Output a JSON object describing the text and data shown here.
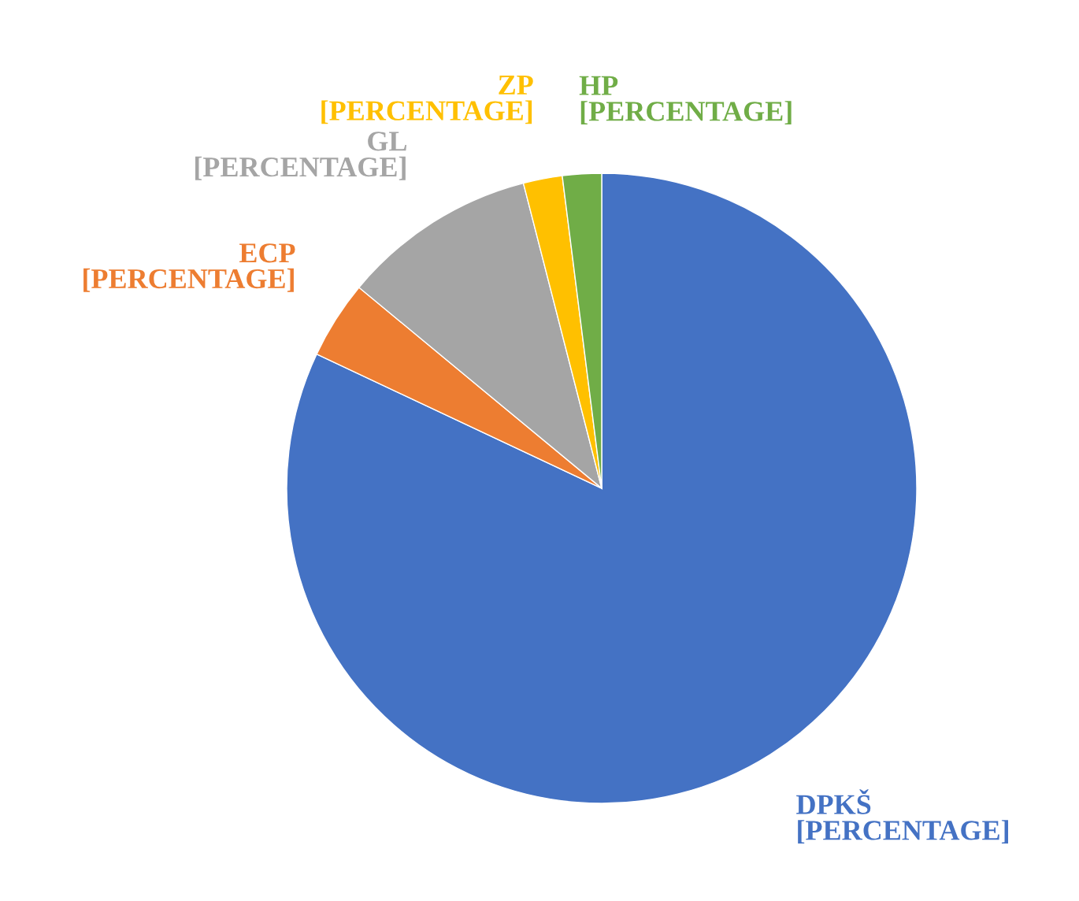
{
  "chart_data": {
    "type": "pie",
    "categories": [
      "DPKŠ",
      "ECP",
      "GL",
      "ZP",
      "HP"
    ],
    "values": [
      82,
      4,
      10,
      2,
      2
    ],
    "value_labels": [
      "[PERCENTAGE]",
      "[PERCENTAGE]",
      "[PERCENTAGE]",
      "[PERCENTAGE]",
      "[PERCENTAGE]"
    ],
    "colors": [
      "#4472c4",
      "#ed7d31",
      "#a5a5a5",
      "#ffc000",
      "#70ad47"
    ],
    "legend": false
  }
}
